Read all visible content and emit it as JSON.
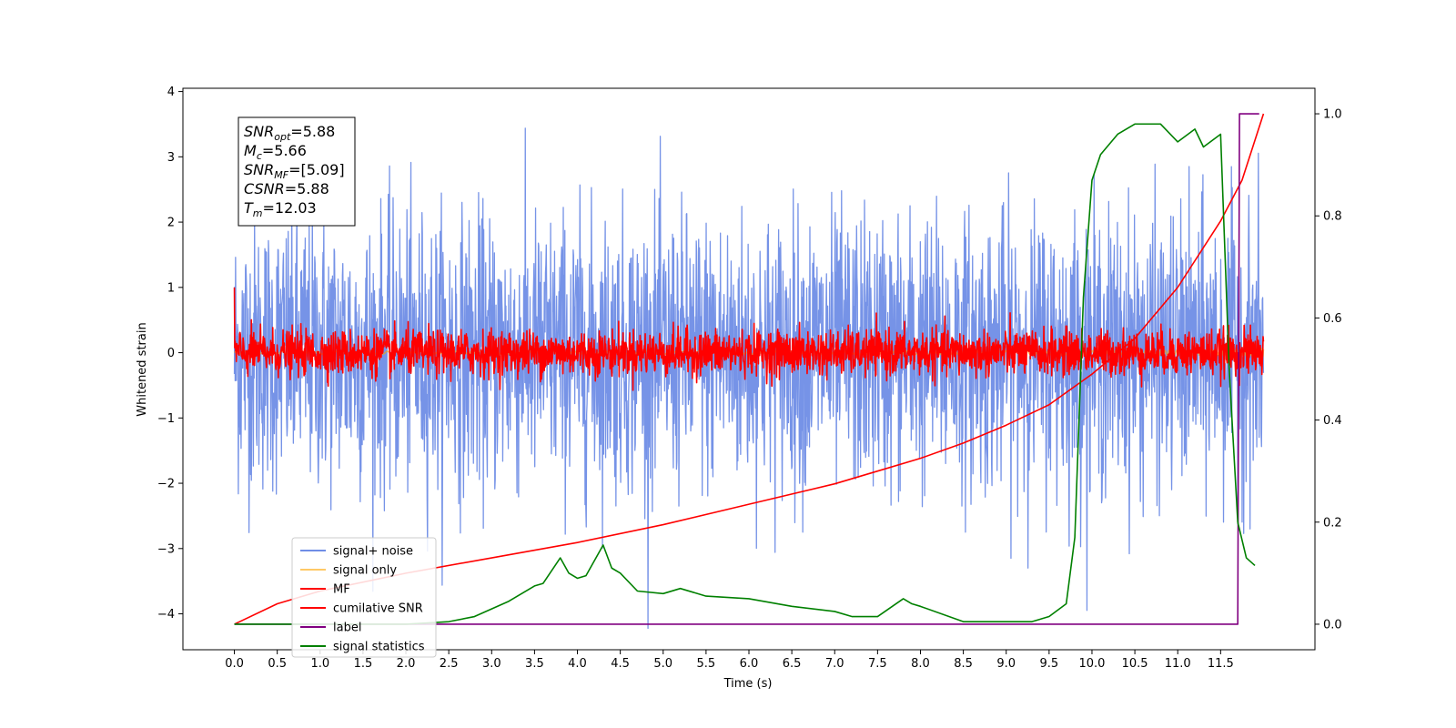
{
  "chart_data": {
    "type": "line",
    "title": "",
    "xlabel": "Time (s)",
    "ylabel": "Whitened strain",
    "ylabel_right": "",
    "xlim": [
      -0.6,
      12.6
    ],
    "ylim": [
      -4.55,
      4.05
    ],
    "ylim_right": [
      -0.05,
      1.05
    ],
    "x_ticks": [
      "0.0",
      "0.5",
      "1.0",
      "1.5",
      "2.0",
      "2.5",
      "3.0",
      "3.5",
      "4.0",
      "4.5",
      "5.0",
      "5.5",
      "6.0",
      "6.5",
      "7.0",
      "7.5",
      "8.0",
      "8.5",
      "9.0",
      "9.5",
      "10.0",
      "10.5",
      "11.0",
      "11.5"
    ],
    "y_ticks": [
      "4",
      "3",
      "2",
      "1",
      "0",
      "−1",
      "−2",
      "−3",
      "−4"
    ],
    "y_ticks_right": [
      "1.0",
      "0.8",
      "0.6",
      "0.4",
      "0.2",
      "0.0"
    ],
    "legend_position": "lower-left",
    "info_box": {
      "lines": [
        {
          "symbol": "SNR",
          "sub": "opt",
          "value": "=5.88"
        },
        {
          "symbol": "M",
          "sub": "c",
          "value": "=5.66"
        },
        {
          "symbol": "SNR",
          "sub": "MF",
          "value": "=[5.09]"
        },
        {
          "symbol": "CSNR",
          "sub": "",
          "value": "=5.88"
        },
        {
          "symbol": "T",
          "sub": "m",
          "value": "=12.03"
        }
      ]
    },
    "series": [
      {
        "name": "signal+ noise",
        "axis": "left",
        "color": "#6f8de6",
        "kind": "noise",
        "amplitude_std": 1.05,
        "x_range": [
          0.0,
          12.0
        ]
      },
      {
        "name": "signal only",
        "axis": "left",
        "color": "#ffa500",
        "kind": "chirp",
        "x_range": [
          0.0,
          12.0
        ]
      },
      {
        "name": "MF",
        "axis": "left",
        "color": "#ff0000",
        "kind": "noise",
        "amplitude_std": 0.17,
        "x_range": [
          0.0,
          12.0
        ]
      },
      {
        "name": "cumilative SNR",
        "axis": "right",
        "color": "#ff0000",
        "x": [
          0.0,
          0.5,
          1.0,
          2.0,
          3.0,
          4.0,
          5.0,
          6.0,
          7.0,
          7.5,
          8.0,
          8.5,
          9.0,
          9.5,
          10.0,
          10.5,
          11.0,
          11.5,
          11.75,
          12.0
        ],
        "values": [
          0.0,
          0.04,
          0.065,
          0.1,
          0.13,
          0.16,
          0.195,
          0.235,
          0.275,
          0.3,
          0.325,
          0.355,
          0.39,
          0.43,
          0.49,
          0.56,
          0.66,
          0.79,
          0.87,
          1.0
        ]
      },
      {
        "name": "label",
        "axis": "right",
        "color": "#800080",
        "x": [
          0.0,
          11.7,
          11.72,
          11.95
        ],
        "values": [
          0.0,
          0.0,
          1.0,
          1.0
        ]
      },
      {
        "name": "signal statistics",
        "axis": "right",
        "color": "#008000",
        "x": [
          0.0,
          1.0,
          2.0,
          2.5,
          2.8,
          3.0,
          3.2,
          3.5,
          3.6,
          3.8,
          3.9,
          4.0,
          4.1,
          4.3,
          4.4,
          4.5,
          4.7,
          5.0,
          5.2,
          5.5,
          6.0,
          6.5,
          7.0,
          7.2,
          7.5,
          7.8,
          7.9,
          8.0,
          8.5,
          9.0,
          9.3,
          9.5,
          9.7,
          9.8,
          9.9,
          10.0,
          10.1,
          10.3,
          10.5,
          10.8,
          11.0,
          11.2,
          11.3,
          11.5,
          11.6,
          11.7,
          11.8,
          11.9
        ],
        "values": [
          0.0,
          0.0,
          0.0,
          0.005,
          0.015,
          0.03,
          0.045,
          0.075,
          0.08,
          0.13,
          0.1,
          0.09,
          0.095,
          0.155,
          0.11,
          0.1,
          0.065,
          0.06,
          0.07,
          0.055,
          0.05,
          0.035,
          0.025,
          0.015,
          0.015,
          0.05,
          0.04,
          0.035,
          0.005,
          0.005,
          0.005,
          0.015,
          0.04,
          0.17,
          0.64,
          0.87,
          0.92,
          0.96,
          0.98,
          0.98,
          0.945,
          0.97,
          0.935,
          0.96,
          0.5,
          0.2,
          0.13,
          0.115
        ]
      }
    ]
  }
}
